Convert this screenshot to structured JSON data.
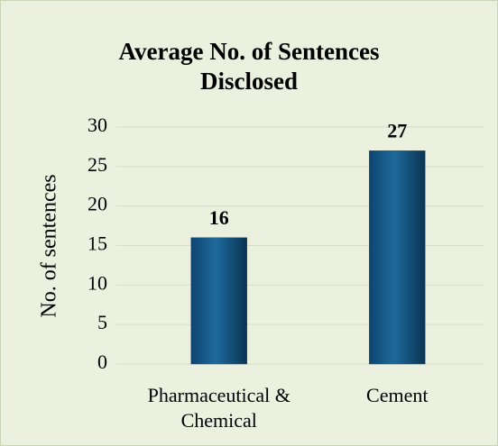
{
  "chart_data": {
    "type": "bar",
    "title": "Average No. of Sentences Disclosed",
    "ylabel": "No. of sentences",
    "categories": [
      "Pharmaceutical & Chemical",
      "Cement"
    ],
    "values": [
      16,
      27
    ],
    "color": "#1a5a8a",
    "ylim": [
      0,
      30
    ],
    "yticks": [
      0,
      5,
      10,
      15,
      20,
      25,
      30
    ],
    "grid": true
  }
}
